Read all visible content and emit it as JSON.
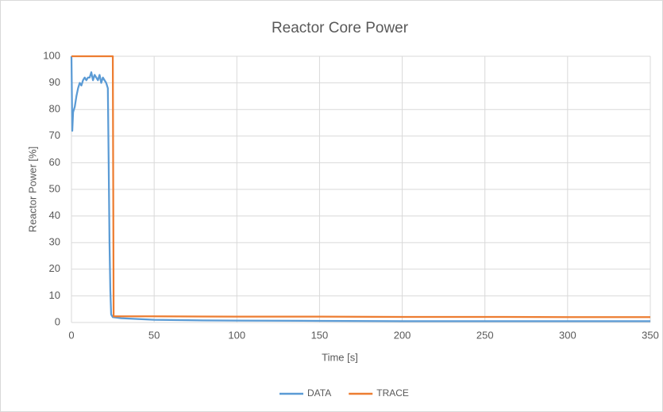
{
  "chart_data": {
    "type": "line",
    "title": "Reactor Core Power",
    "x_label": "Time [s]",
    "y_label": "Reactor Power [%]",
    "xlim": [
      0,
      350
    ],
    "xticks": [
      0,
      50,
      100,
      150,
      200,
      250,
      300,
      350
    ],
    "ylim": [
      0,
      100
    ],
    "yticks": [
      0,
      10,
      20,
      30,
      40,
      50,
      60,
      70,
      80,
      90,
      100
    ],
    "grid": true,
    "legend": "bottom",
    "series": [
      {
        "name": "DATA",
        "color": "#5b9bd5",
        "x": [
          0,
          0.5,
          1,
          2,
          3,
          4,
          5,
          6,
          7,
          8,
          9,
          10,
          11,
          12,
          13,
          14,
          15,
          16,
          17,
          18,
          19,
          20,
          21,
          22,
          22.5,
          23,
          23.5,
          24,
          25,
          30,
          40,
          50,
          75,
          100,
          150,
          200,
          250,
          300,
          350
        ],
        "values": [
          100,
          72,
          79,
          81,
          85,
          88,
          90,
          89,
          91,
          92,
          91,
          92,
          92,
          94,
          91,
          93,
          92,
          91,
          93,
          90,
          92,
          91,
          90,
          88,
          60,
          30,
          12,
          3,
          2,
          1.6,
          1.3,
          1,
          0.8,
          0.7,
          0.6,
          0.5,
          0.5,
          0.5,
          0.5
        ]
      },
      {
        "name": "TRACE",
        "color": "#ed7d31",
        "x": [
          0,
          25,
          25.5,
          50,
          100,
          150,
          200,
          250,
          300,
          350
        ],
        "values": [
          100,
          100,
          2.3,
          2.3,
          2.2,
          2.2,
          2.1,
          2.1,
          2,
          2
        ]
      }
    ]
  }
}
